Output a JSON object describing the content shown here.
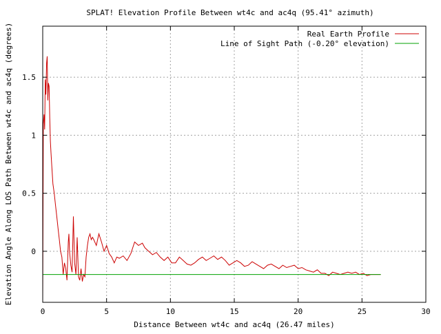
{
  "chart_data": {
    "type": "line",
    "title": "SPLAT! Elevation Profile Between wt4c and ac4q (95.41° azimuth)",
    "xlabel": "Distance Between wt4c and ac4q (26.47 miles)",
    "ylabel": "Elevation Angle Along LOS Path Between wt4c and ac4q (degrees)",
    "xlim": [
      0,
      30
    ],
    "ylim": [
      -0.44,
      1.94
    ],
    "xticks": [
      0,
      5,
      10,
      15,
      20,
      25,
      30
    ],
    "xtick_labels": [
      "0",
      "5",
      "10",
      "15",
      "20",
      "25",
      "30"
    ],
    "yticks": [
      0,
      0.5,
      1,
      1.5
    ],
    "ytick_labels": [
      "0",
      "0.5",
      "1",
      "1.5"
    ],
    "grid": true,
    "legend_position": "top-right",
    "series": [
      {
        "name": "Real Earth Profile",
        "color": "#cc0000",
        "x": [
          0.0,
          0.05,
          0.1,
          0.15,
          0.2,
          0.25,
          0.3,
          0.35,
          0.4,
          0.45,
          0.5,
          0.55,
          0.6,
          0.65,
          0.7,
          0.8,
          0.9,
          1.0,
          1.1,
          1.2,
          1.3,
          1.4,
          1.5,
          1.6,
          1.7,
          1.8,
          1.9,
          2.0,
          2.05,
          2.1,
          2.2,
          2.3,
          2.4,
          2.5,
          2.6,
          2.7,
          2.8,
          2.9,
          3.0,
          3.1,
          3.2,
          3.3,
          3.4,
          3.5,
          3.6,
          3.7,
          3.8,
          3.9,
          4.0,
          4.2,
          4.4,
          4.6,
          4.8,
          5.0,
          5.2,
          5.4,
          5.6,
          5.8,
          6.0,
          6.3,
          6.6,
          6.9,
          7.2,
          7.5,
          7.8,
          8.0,
          8.3,
          8.6,
          8.9,
          9.2,
          9.5,
          9.8,
          10.1,
          10.4,
          10.7,
          11.0,
          11.3,
          11.6,
          11.9,
          12.2,
          12.5,
          12.8,
          13.1,
          13.4,
          13.7,
          14.0,
          14.3,
          14.6,
          14.9,
          15.2,
          15.5,
          15.8,
          16.1,
          16.4,
          16.7,
          17.0,
          17.3,
          17.6,
          17.9,
          18.2,
          18.5,
          18.8,
          19.1,
          19.4,
          19.7,
          20.0,
          20.3,
          20.6,
          20.9,
          21.2,
          21.5,
          21.8,
          22.1,
          22.4,
          22.7,
          23.0,
          23.3,
          23.6,
          23.9,
          24.2,
          24.5,
          24.8,
          25.1,
          25.4,
          25.7,
          26.0,
          26.47
        ],
        "y": [
          -0.44,
          1.1,
          1.18,
          1.05,
          1.48,
          1.35,
          1.62,
          1.68,
          1.3,
          1.45,
          1.42,
          1.15,
          0.95,
          0.85,
          0.75,
          0.58,
          0.5,
          0.4,
          0.3,
          0.2,
          0.1,
          0.0,
          -0.05,
          -0.2,
          -0.1,
          -0.15,
          -0.25,
          0.08,
          0.15,
          0.0,
          -0.12,
          -0.18,
          0.3,
          -0.1,
          -0.2,
          0.12,
          -0.22,
          -0.25,
          -0.15,
          -0.26,
          -0.2,
          -0.22,
          -0.05,
          0.05,
          0.12,
          0.15,
          0.1,
          0.12,
          0.1,
          0.05,
          0.15,
          0.08,
          0.0,
          0.05,
          -0.02,
          -0.05,
          -0.1,
          -0.05,
          -0.06,
          -0.04,
          -0.08,
          -0.02,
          0.08,
          0.05,
          0.07,
          0.03,
          0.0,
          -0.03,
          -0.01,
          -0.05,
          -0.08,
          -0.05,
          -0.1,
          -0.1,
          -0.05,
          -0.08,
          -0.11,
          -0.12,
          -0.1,
          -0.07,
          -0.05,
          -0.08,
          -0.06,
          -0.04,
          -0.07,
          -0.05,
          -0.08,
          -0.12,
          -0.1,
          -0.08,
          -0.1,
          -0.13,
          -0.12,
          -0.09,
          -0.11,
          -0.13,
          -0.15,
          -0.12,
          -0.11,
          -0.13,
          -0.15,
          -0.12,
          -0.14,
          -0.13,
          -0.12,
          -0.15,
          -0.14,
          -0.16,
          -0.17,
          -0.18,
          -0.16,
          -0.19,
          -0.19,
          -0.21,
          -0.18,
          -0.19,
          -0.2,
          -0.19,
          -0.18,
          -0.19,
          -0.18,
          -0.2,
          -0.19,
          -0.21,
          -0.2,
          -0.2,
          -0.2
        ]
      },
      {
        "name": "Line of Sight Path (-0.20° elevation)",
        "color": "#00a000",
        "x": [
          0.0,
          26.47
        ],
        "y": [
          -0.2,
          -0.2
        ]
      }
    ]
  }
}
